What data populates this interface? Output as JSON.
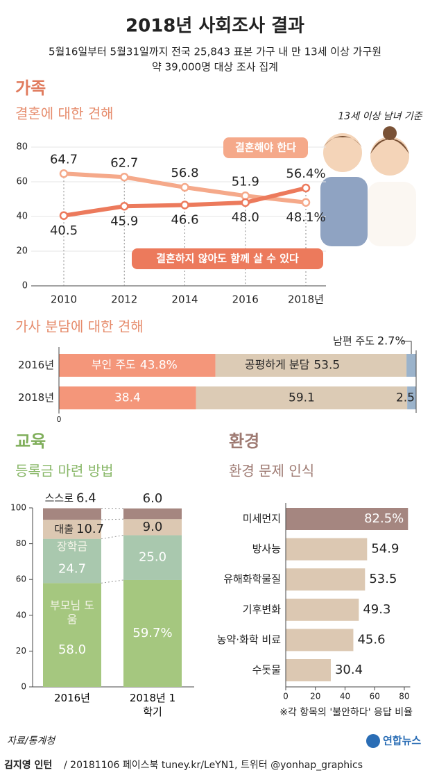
{
  "title": "2018년 사회조사 결과",
  "subtitle": [
    "5월16일부터 5월31일까지 전국 25,843 표본 가구 내 만 13세 이상 가구원",
    "약 39,000명 대상 조사 집계"
  ],
  "sections": {
    "family": "가족",
    "education": "교육",
    "environment": "환경"
  },
  "chart_data": [
    {
      "type": "line",
      "title": "결혼에 대한 견해",
      "note": "13세 이상 남녀 기준",
      "categories": [
        "2010",
        "2012",
        "2014",
        "2016",
        "2018년"
      ],
      "series": [
        {
          "name": "결혼해야 한다",
          "color": "#f5a98a",
          "values": [
            64.7,
            62.7,
            56.8,
            51.9,
            48.1
          ],
          "value_labels": [
            "64.7",
            "62.7",
            "56.8",
            "51.9",
            "48.1%"
          ]
        },
        {
          "name": "결혼하지 않아도 함께 살 수 있다",
          "color": "#ec7a5c",
          "values": [
            40.5,
            45.9,
            46.6,
            48.0,
            56.4
          ],
          "value_labels": [
            "40.5",
            "45.9",
            "46.6",
            "48.0",
            "56.4%"
          ]
        }
      ],
      "ylim": [
        0,
        80
      ],
      "yticks": [
        0,
        20,
        40,
        60,
        80
      ],
      "grid": true
    },
    {
      "type": "stacked-hbar",
      "title": "가사 분담에 대한 견해",
      "categories": [
        "2016년",
        "2018년"
      ],
      "series": [
        {
          "name": "부인 주도",
          "color": "#f4967a",
          "values": [
            43.8,
            38.4
          ],
          "value_labels": [
            "43.8%",
            "38.4"
          ]
        },
        {
          "name": "공평하게 분담",
          "color": "#dccbb5",
          "values": [
            53.5,
            59.1
          ],
          "value_labels": [
            "53.5",
            "59.1"
          ]
        },
        {
          "name": "남편 주도",
          "color": "#9bb3cb",
          "values": [
            2.7,
            2.5
          ],
          "value_labels": [
            "2.7%",
            "2.5"
          ]
        }
      ],
      "xlim": [
        0,
        100
      ],
      "xticks": [
        0
      ]
    },
    {
      "type": "stacked-bar",
      "title": "등록금 마련 방법",
      "categories": [
        "2016년",
        "2018년 1학기"
      ],
      "series": [
        {
          "name": "부모님 도움",
          "color": "#a5c77f",
          "values": [
            58.0,
            59.7
          ],
          "value_labels": [
            "58.0",
            "59.7%"
          ]
        },
        {
          "name": "장학금",
          "color": "#a9c8ae",
          "values": [
            24.7,
            25.0
          ],
          "value_labels": [
            "24.7",
            "25.0"
          ]
        },
        {
          "name": "대출",
          "color": "#dcc8b2",
          "values": [
            10.7,
            9.0
          ],
          "value_labels": [
            "10.7",
            "9.0"
          ]
        },
        {
          "name": "스스로",
          "color": "#a58680",
          "values": [
            6.4,
            6.0
          ],
          "value_labels": [
            "6.4",
            "6.0"
          ]
        }
      ],
      "ylim": [
        0,
        100
      ],
      "yticks": [
        0,
        20,
        40,
        60,
        80,
        100
      ]
    },
    {
      "type": "hbar",
      "title": "환경 문제 인식",
      "note": "※각 항목의 '불안하다' 응답 비율",
      "categories": [
        "미세먼지",
        "방사능",
        "유해화학물질",
        "기후변화",
        "농약·화학 비료",
        "수돗물"
      ],
      "values": [
        82.5,
        54.9,
        53.5,
        49.3,
        45.6,
        30.4
      ],
      "value_labels": [
        "82.5%",
        "54.9",
        "53.5",
        "49.3",
        "45.6",
        "30.4"
      ],
      "colors": [
        "#a58680",
        "#dcc8b2",
        "#dcc8b2",
        "#dcc8b2",
        "#dcc8b2",
        "#dcc8b2"
      ],
      "xlim": [
        0,
        84
      ],
      "xticks": [
        0,
        20,
        40,
        60,
        80
      ]
    }
  ],
  "source": "자료/통계청",
  "logo": "연합뉴스",
  "credit": {
    "author": "김지영 인턴",
    "text": "/ 20181106 페이스북 tuney.kr/LeYN1, 트위터 @yonhap_graphics"
  }
}
